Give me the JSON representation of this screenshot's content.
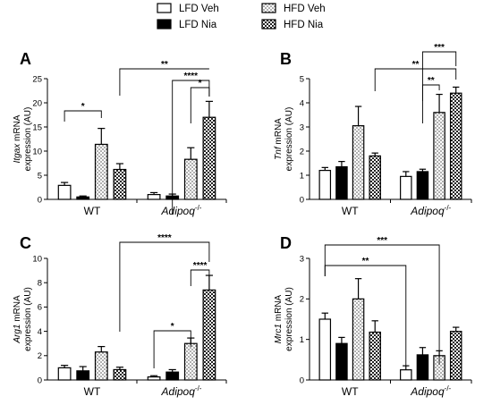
{
  "legend": [
    {
      "label": "LFD Veh",
      "pattern": "open"
    },
    {
      "label": "LFD Nia",
      "pattern": "solid"
    },
    {
      "label": "HFD Veh",
      "pattern": "dots"
    },
    {
      "label": "HFD Nia",
      "pattern": "check"
    }
  ],
  "chart_data": [
    {
      "type": "bar",
      "panel": "A",
      "gene": "Itgax",
      "ylabel": "mRNA expression (AU)",
      "ylim": [
        0,
        25
      ],
      "yticks": [
        "0",
        "5",
        "10",
        "15",
        "20",
        "25"
      ],
      "groups": [
        "WT",
        "Adipoq"
      ],
      "group_suffix": [
        "",
        "-/-"
      ],
      "series": [
        {
          "name": "LFD Veh",
          "values": [
            2.9,
            1.0
          ],
          "errors": [
            0.6,
            0.4
          ]
        },
        {
          "name": "LFD Nia",
          "values": [
            0.5,
            0.7
          ],
          "errors": [
            0.2,
            0.4
          ]
        },
        {
          "name": "HFD Veh",
          "values": [
            11.4,
            8.3
          ],
          "errors": [
            3.3,
            2.4
          ]
        },
        {
          "name": "HFD Nia",
          "values": [
            6.2,
            17.0
          ],
          "errors": [
            1.2,
            3.3
          ]
        }
      ],
      "significance": [
        {
          "label": "*",
          "from": [
            0,
            0
          ],
          "to": [
            0,
            2
          ]
        },
        {
          "label": "**",
          "from": [
            0,
            3
          ],
          "to": [
            1,
            3
          ]
        },
        {
          "label": "****",
          "from": [
            1,
            1
          ],
          "to": [
            1,
            3
          ]
        },
        {
          "label": "*",
          "from": [
            1,
            2
          ],
          "to": [
            1,
            3
          ]
        }
      ]
    },
    {
      "type": "bar",
      "panel": "B",
      "gene": "Tnf",
      "ylabel": "mRNA expression (AU)",
      "ylim": [
        0,
        5
      ],
      "yticks": [
        "0",
        "1",
        "2",
        "3",
        "4",
        "5"
      ],
      "groups": [
        "WT",
        "Adipoq"
      ],
      "group_suffix": [
        "",
        "-/-"
      ],
      "series": [
        {
          "name": "LFD Veh",
          "values": [
            1.2,
            0.95
          ],
          "errors": [
            0.12,
            0.2
          ]
        },
        {
          "name": "LFD Nia",
          "values": [
            1.35,
            1.15
          ],
          "errors": [
            0.22,
            0.1
          ]
        },
        {
          "name": "HFD Veh",
          "values": [
            3.05,
            3.6
          ],
          "errors": [
            0.8,
            0.75
          ]
        },
        {
          "name": "HFD Nia",
          "values": [
            1.8,
            4.4
          ],
          "errors": [
            0.12,
            0.25
          ]
        }
      ],
      "significance": [
        {
          "label": "**",
          "from": [
            0,
            3
          ],
          "to": [
            1,
            3
          ]
        },
        {
          "label": "***",
          "from": [
            1,
            1
          ],
          "to": [
            1,
            3
          ]
        },
        {
          "label": "**",
          "from": [
            1,
            1
          ],
          "to": [
            1,
            2
          ]
        }
      ]
    },
    {
      "type": "bar",
      "panel": "C",
      "gene": "Arg1",
      "ylabel": "mRNA expression (AU)",
      "ylim": [
        0,
        10
      ],
      "yticks": [
        "0",
        "2",
        "4",
        "6",
        "8",
        "10"
      ],
      "groups": [
        "WT",
        "Adipoq"
      ],
      "group_suffix": [
        "",
        "-/-"
      ],
      "series": [
        {
          "name": "LFD Veh",
          "values": [
            1.0,
            0.25
          ],
          "errors": [
            0.2,
            0.1
          ]
        },
        {
          "name": "LFD Nia",
          "values": [
            0.75,
            0.65
          ],
          "errors": [
            0.35,
            0.2
          ]
        },
        {
          "name": "HFD Veh",
          "values": [
            2.3,
            3.0
          ],
          "errors": [
            0.45,
            0.45
          ]
        },
        {
          "name": "HFD Nia",
          "values": [
            0.85,
            7.4
          ],
          "errors": [
            0.2,
            1.2
          ]
        }
      ],
      "significance": [
        {
          "label": "****",
          "from": [
            0,
            3
          ],
          "to": [
            1,
            3
          ]
        },
        {
          "label": "****",
          "from": [
            1,
            2
          ],
          "to": [
            1,
            3
          ]
        },
        {
          "label": "*",
          "from": [
            1,
            0
          ],
          "to": [
            1,
            2
          ]
        }
      ]
    },
    {
      "type": "bar",
      "panel": "D",
      "gene": "Mrc1",
      "ylabel": "mRNA expression (AU)",
      "ylim": [
        0,
        3
      ],
      "yticks": [
        "0",
        "1",
        "2",
        "3"
      ],
      "groups": [
        "WT",
        "Adipoq"
      ],
      "group_suffix": [
        "",
        "-/-"
      ],
      "series": [
        {
          "name": "LFD Veh",
          "values": [
            1.5,
            0.25
          ],
          "errors": [
            0.15,
            0.1
          ]
        },
        {
          "name": "LFD Nia",
          "values": [
            0.9,
            0.62
          ],
          "errors": [
            0.15,
            0.18
          ]
        },
        {
          "name": "HFD Veh",
          "values": [
            2.0,
            0.6
          ],
          "errors": [
            0.5,
            0.12
          ]
        },
        {
          "name": "HFD Nia",
          "values": [
            1.18,
            1.2
          ],
          "errors": [
            0.28,
            0.1
          ]
        }
      ],
      "significance": [
        {
          "label": "**",
          "from": [
            0,
            0
          ],
          "to": [
            1,
            0
          ]
        },
        {
          "label": "***",
          "from": [
            0,
            0
          ],
          "to": [
            1,
            2
          ]
        }
      ]
    }
  ]
}
